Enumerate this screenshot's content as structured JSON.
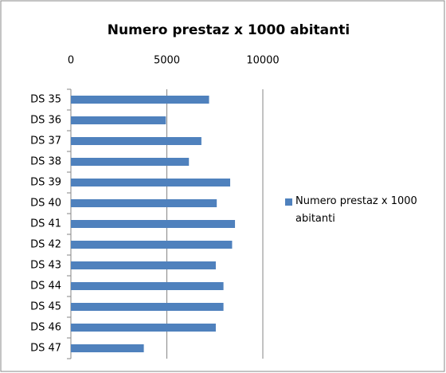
{
  "chart_data": {
    "type": "barh",
    "title": "Numero prestaz x 1000 abitanti",
    "categories": [
      "DS 35",
      "DS 36",
      "DS 37",
      "DS 38",
      "DS 39",
      "DS 40",
      "DS 41",
      "DS 42",
      "DS 43",
      "DS 44",
      "DS 45",
      "DS 46",
      "DS 47"
    ],
    "series": [
      {
        "name": "Numero prestaz x 1000 abitanti",
        "color": "#4f81bd",
        "values": [
          7200,
          4950,
          6800,
          6150,
          8300,
          7600,
          8550,
          8400,
          7550,
          7950,
          7950,
          7550,
          3800
        ]
      }
    ],
    "xlim": [
      0,
      10000
    ],
    "xticks": [
      0,
      5000,
      10000
    ],
    "grid": true,
    "legend": "right"
  }
}
